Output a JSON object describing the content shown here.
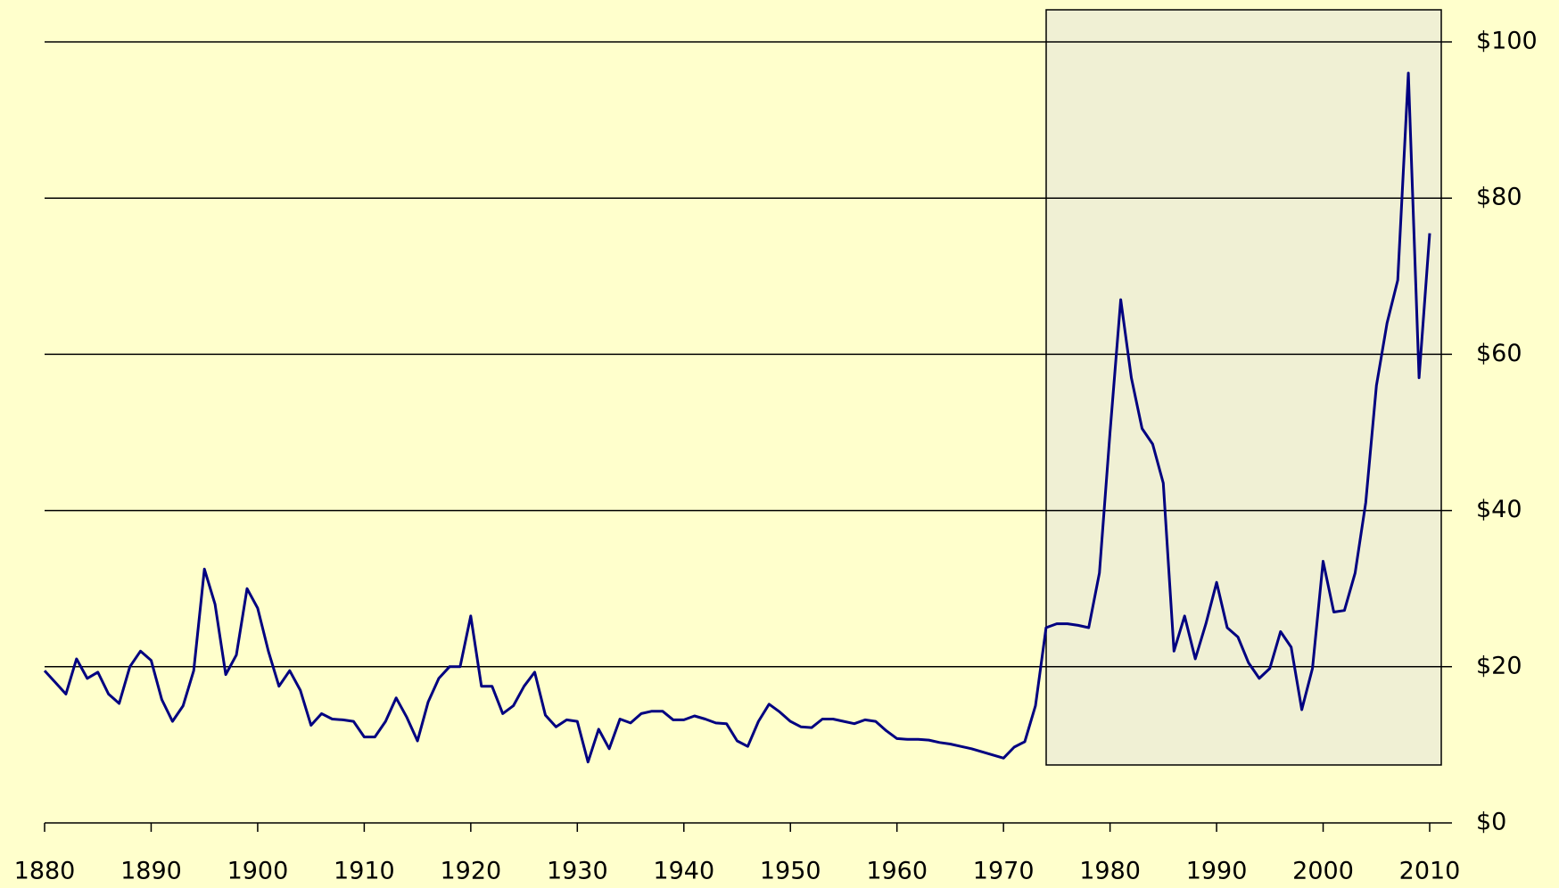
{
  "chart_data": {
    "type": "line",
    "x": [
      1880,
      1881,
      1882,
      1883,
      1884,
      1885,
      1886,
      1887,
      1888,
      1889,
      1890,
      1891,
      1892,
      1893,
      1894,
      1895,
      1896,
      1897,
      1898,
      1899,
      1900,
      1901,
      1902,
      1903,
      1904,
      1905,
      1906,
      1907,
      1908,
      1909,
      1910,
      1911,
      1912,
      1913,
      1914,
      1915,
      1916,
      1917,
      1918,
      1919,
      1920,
      1921,
      1922,
      1923,
      1924,
      1925,
      1926,
      1927,
      1928,
      1929,
      1930,
      1931,
      1932,
      1933,
      1934,
      1935,
      1936,
      1937,
      1938,
      1939,
      1940,
      1941,
      1942,
      1943,
      1944,
      1945,
      1946,
      1947,
      1948,
      1949,
      1950,
      1951,
      1952,
      1953,
      1954,
      1955,
      1956,
      1957,
      1958,
      1959,
      1960,
      1961,
      1962,
      1963,
      1964,
      1965,
      1966,
      1967,
      1968,
      1969,
      1970,
      1971,
      1972,
      1973,
      1974,
      1975,
      1976,
      1977,
      1978,
      1979,
      1980,
      1981,
      1982,
      1983,
      1984,
      1985,
      1986,
      1987,
      1988,
      1989,
      1990,
      1991,
      1992,
      1993,
      1994,
      1995,
      1996,
      1997,
      1998,
      1999,
      2000,
      2001,
      2002,
      2003,
      2004,
      2005,
      2006,
      2007,
      2008,
      2009,
      2010
    ],
    "series": [
      {
        "color": "#000080",
        "values": [
          19.5,
          18,
          16.5,
          21,
          18.5,
          19.3,
          16.5,
          15.3,
          20,
          22,
          20.8,
          15.8,
          13,
          15,
          19.5,
          32.5,
          28,
          19,
          21.5,
          30,
          27.5,
          22,
          17.5,
          19.5,
          17,
          12.5,
          14,
          13.3,
          13.2,
          13,
          11,
          11,
          13,
          16,
          13.5,
          10.5,
          15.5,
          18.5,
          20,
          20,
          26.5,
          17.5,
          17.5,
          14,
          15,
          17.5,
          19.3,
          13.8,
          12.3,
          13.2,
          13,
          7.8,
          12,
          9.5,
          13.3,
          12.8,
          14,
          14.3,
          14.3,
          13.2,
          13.2,
          13.7,
          13.3,
          12.8,
          12.7,
          10.5,
          9.8,
          13,
          15.2,
          14.2,
          13,
          12.3,
          12.2,
          13.3,
          13.3,
          13,
          12.7,
          13.2,
          13,
          11.8,
          10.8,
          10.7,
          10.7,
          10.6,
          10.3,
          10.1,
          9.8,
          9.5,
          9.1,
          8.7,
          8.3,
          9.7,
          10.4,
          15,
          25,
          25.5,
          25.5,
          25.3,
          25,
          32,
          50,
          67,
          57,
          50.5,
          48.5,
          43.5,
          22,
          26.5,
          21,
          25.5,
          30.8,
          25,
          23.8,
          20.5,
          18.5,
          19.8,
          24.5,
          22.5,
          14.5,
          19.8,
          33.5,
          27,
          27.2,
          32,
          41,
          56,
          64,
          69.5,
          96,
          57,
          75.5
        ]
      }
    ],
    "xlim": [
      1880,
      2010
    ],
    "xticks": [
      1880,
      1890,
      1900,
      1910,
      1920,
      1930,
      1940,
      1950,
      1960,
      1970,
      1980,
      1990,
      2000,
      2010
    ],
    "ylim": [
      0,
      100
    ],
    "yticks": [
      {
        "value": 0,
        "label": "$0"
      },
      {
        "value": 20,
        "label": "$20"
      },
      {
        "value": 40,
        "label": "$40"
      },
      {
        "value": 60,
        "label": "$60"
      },
      {
        "value": 80,
        "label": "$80"
      },
      {
        "value": 100,
        "label": "$100"
      }
    ],
    "grid": true
  }
}
